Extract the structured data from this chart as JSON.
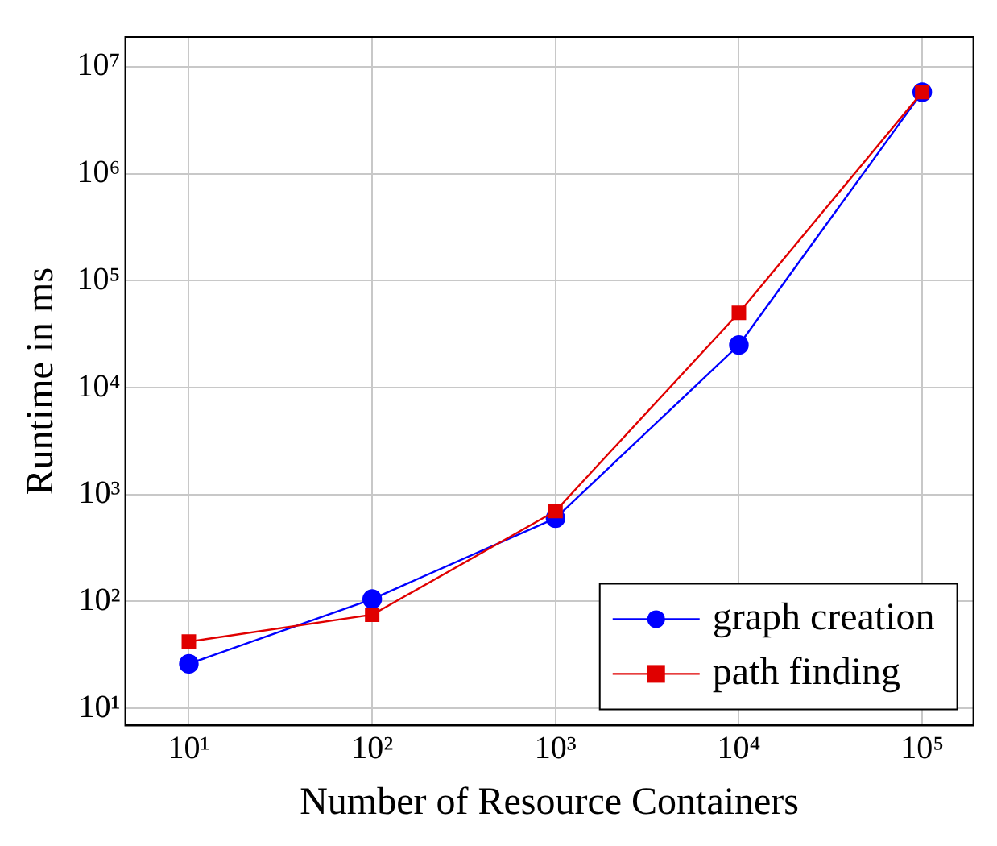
{
  "chart_data": {
    "type": "line",
    "xlabel": "Number of Resource Containers",
    "ylabel": "Runtime in ms",
    "x": [
      10,
      100,
      1000,
      10000,
      100000
    ],
    "series": [
      {
        "name": "graph creation",
        "color": "#0000ff",
        "marker": "circle",
        "values": [
          26,
          105,
          600,
          25000,
          5800000
        ]
      },
      {
        "name": "path finding",
        "color": "#e00000",
        "marker": "square",
        "values": [
          42,
          75,
          700,
          50000,
          5800000
        ]
      }
    ],
    "log": "xy",
    "xlim": [
      4.5,
      190000
    ],
    "ylim": [
      6.9,
      19000000
    ],
    "xticks": [
      {
        "value": 10,
        "label": "10¹"
      },
      {
        "value": 100,
        "label": "10²"
      },
      {
        "value": 1000,
        "label": "10³"
      },
      {
        "value": 10000,
        "label": "10⁴"
      },
      {
        "value": 100000,
        "label": "10⁵"
      }
    ],
    "yticks": [
      {
        "value": 10,
        "label": "10¹"
      },
      {
        "value": 100,
        "label": "10²"
      },
      {
        "value": 1000,
        "label": "10³"
      },
      {
        "value": 10000,
        "label": "10⁴"
      },
      {
        "value": 100000,
        "label": "10⁵"
      },
      {
        "value": 1000000,
        "label": "10⁶"
      },
      {
        "value": 10000000,
        "label": "10⁷"
      }
    ],
    "grid": true,
    "legend": "bottom right",
    "line_style": "solid"
  }
}
